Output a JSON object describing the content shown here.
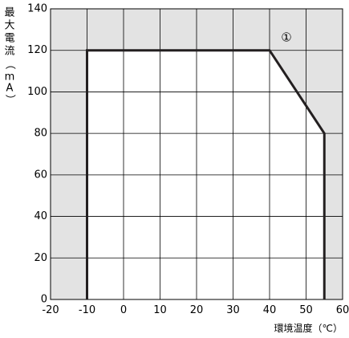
{
  "chart_data": {
    "type": "line",
    "ylabel": "最大電流（mA）",
    "xlabel": "環境温度（℃）",
    "xlim": [
      -20,
      60
    ],
    "ylim": [
      0,
      140
    ],
    "x_ticks": [
      -20,
      -10,
      0,
      10,
      20,
      30,
      40,
      50,
      60
    ],
    "y_ticks": [
      0,
      20,
      40,
      60,
      80,
      100,
      120,
      140
    ],
    "grid": true,
    "series": [
      {
        "x": [
          -10,
          -10,
          40,
          55,
          55
        ],
        "y": [
          0,
          120,
          120,
          80,
          0
        ]
      }
    ],
    "annotation": "①",
    "colors": {
      "outside_area": "#e3e3e3",
      "inside_area": "#ffffff",
      "line": "#231f20",
      "grid": "#000000"
    }
  }
}
